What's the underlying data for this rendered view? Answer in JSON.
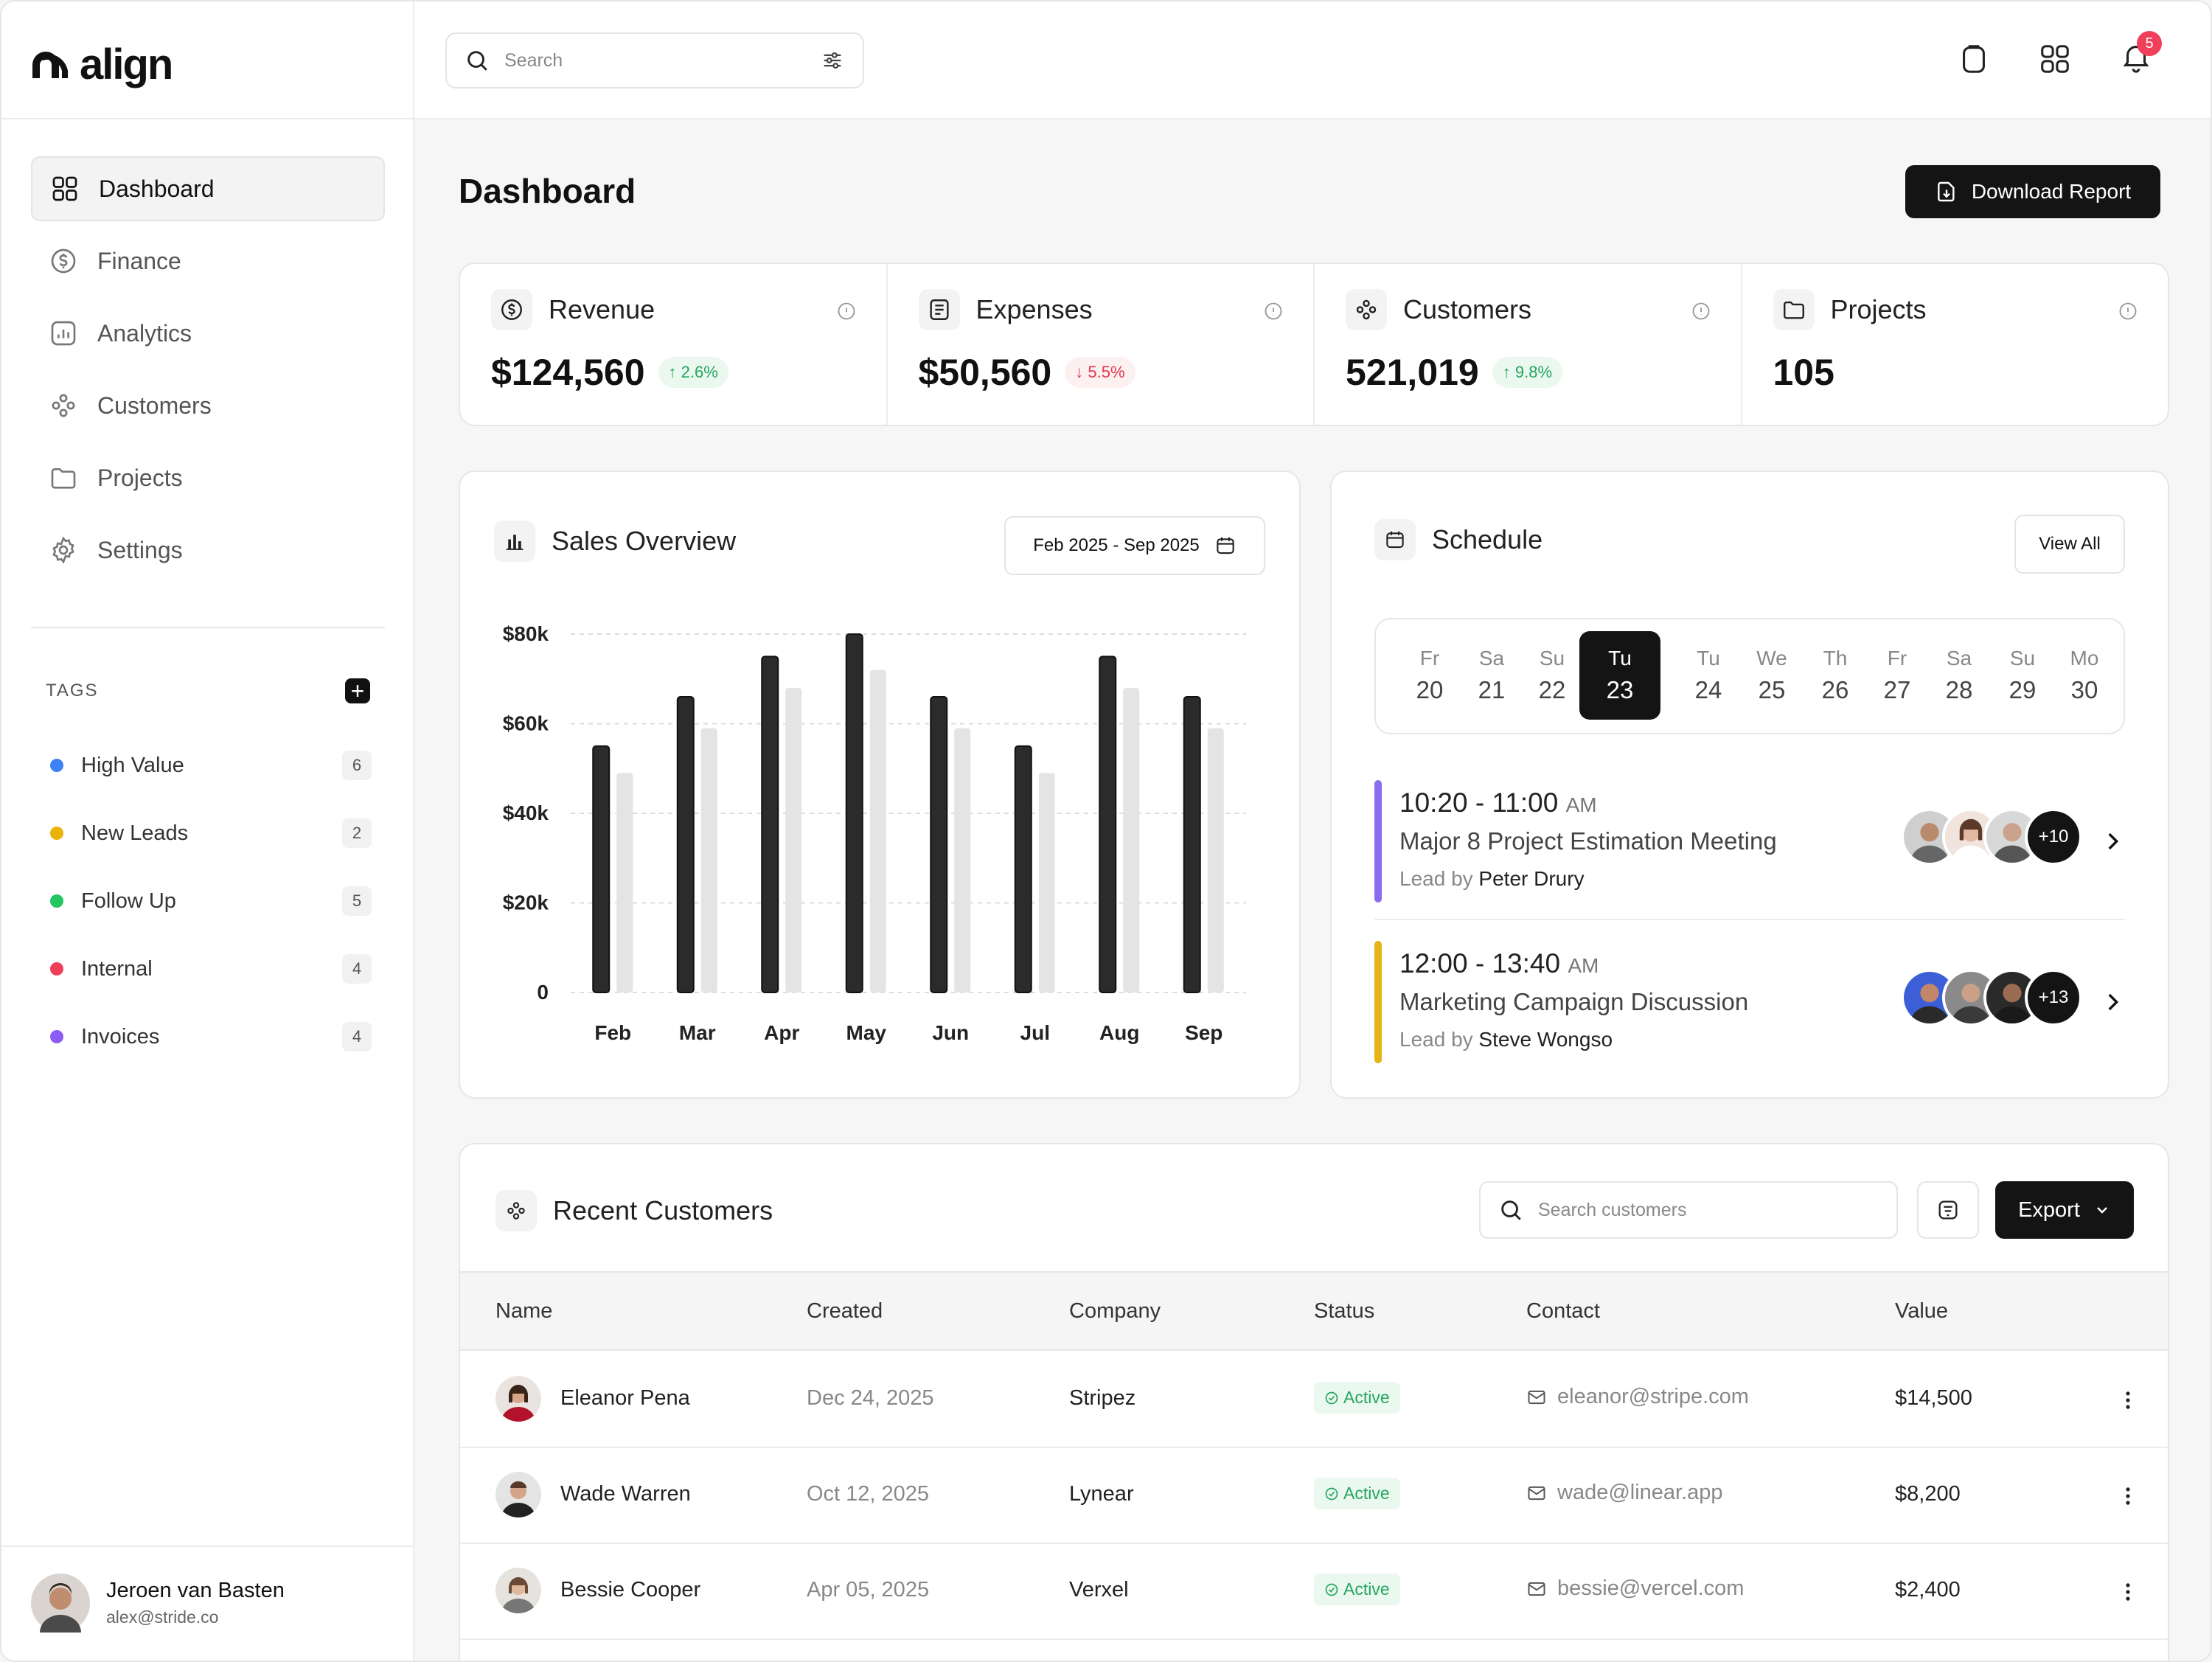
{
  "app": {
    "name": "align"
  },
  "sidebar": {
    "items": [
      {
        "label": "Dashboard",
        "icon": "grid-icon"
      },
      {
        "label": "Finance",
        "icon": "dollar-icon"
      },
      {
        "label": "Analytics",
        "icon": "analytics-icon"
      },
      {
        "label": "Customers",
        "icon": "customers-icon"
      },
      {
        "label": "Projects",
        "icon": "folder-icon"
      },
      {
        "label": "Settings",
        "icon": "gear-icon"
      }
    ],
    "tags_title": "TAGS",
    "tags": [
      {
        "label": "High Value",
        "count": "6",
        "color": "#3b82f6"
      },
      {
        "label": "New Leads",
        "count": "2",
        "color": "#eab308"
      },
      {
        "label": "Follow Up",
        "count": "5",
        "color": "#22c55e"
      },
      {
        "label": "Internal",
        "count": "4",
        "color": "#ef3f5a"
      },
      {
        "label": "Invoices",
        "count": "4",
        "color": "#8b5cf6"
      }
    ],
    "user": {
      "name": "Jeroen van Basten",
      "email": "alex@stride.co"
    }
  },
  "topbar": {
    "search_placeholder": "Search",
    "notifications": "5"
  },
  "header": {
    "title": "Dashboard",
    "download_label": "Download Report"
  },
  "stats": [
    {
      "label": "Revenue",
      "value": "$124,560",
      "change": "2.6%",
      "direction": "up"
    },
    {
      "label": "Expenses",
      "value": "$50,560",
      "change": "5.5%",
      "direction": "down"
    },
    {
      "label": "Customers",
      "value": "521,019",
      "change": "9.8%",
      "direction": "up"
    },
    {
      "label": "Projects",
      "value": "105",
      "change": "",
      "direction": ""
    }
  ],
  "sales": {
    "title": "Sales Overview",
    "range": "Feb 2025 - Sep 2025"
  },
  "chart_data": {
    "type": "bar",
    "categories": [
      "Feb",
      "Mar",
      "Apr",
      "May",
      "Jun",
      "Jul",
      "Aug",
      "Sep"
    ],
    "series": [
      {
        "values": [
          55000,
          66000,
          75000,
          80000,
          66000,
          55000,
          75000,
          66000
        ],
        "color": "#2b2b2b"
      },
      {
        "values": [
          49000,
          59000,
          68000,
          72000,
          59000,
          49000,
          68000,
          59000
        ],
        "color": "#e4e4e4"
      }
    ],
    "ytick_labels": [
      "0",
      "$20k",
      "$40k",
      "$60k",
      "$80k"
    ],
    "ylim": [
      0,
      80000
    ],
    "grid": true
  },
  "schedule": {
    "title": "Schedule",
    "view_all": "View All",
    "days": [
      {
        "name": "Fr",
        "date": "20"
      },
      {
        "name": "Sa",
        "date": "21"
      },
      {
        "name": "Su",
        "date": "22"
      },
      {
        "name": "Tu",
        "date": "23",
        "active": true
      },
      {
        "name": "Tu",
        "date": "24"
      },
      {
        "name": "We",
        "date": "25"
      },
      {
        "name": "Th",
        "date": "26"
      },
      {
        "name": "Fr",
        "date": "27"
      },
      {
        "name": "Sa",
        "date": "28"
      },
      {
        "name": "Su",
        "date": "29"
      },
      {
        "name": "Mo",
        "date": "30"
      }
    ],
    "events": [
      {
        "time": "10:20 - 11:00",
        "ampm": "AM",
        "title": "Major 8 Project Estimation Meeting",
        "lead_prefix": "Lead by",
        "lead": "Peter Drury",
        "more": "+10",
        "color": "#8b6cf0"
      },
      {
        "time": "12:00 - 13:40",
        "ampm": "AM",
        "title": "Marketing Campaign Discussion",
        "lead_prefix": "Lead by",
        "lead": "Steve Wongso",
        "more": "+13",
        "color": "#e7b416"
      }
    ]
  },
  "customers": {
    "title": "Recent Customers",
    "search_placeholder": "Search customers",
    "export_label": "Export",
    "columns": [
      "Name",
      "Created",
      "Company",
      "Status",
      "Contact",
      "Value"
    ],
    "rows": [
      {
        "name": "Eleanor Pena",
        "created": "Dec 24, 2025",
        "company": "Stripez",
        "status": "Active",
        "contact": "eleanor@stripe.com",
        "value": "$14,500"
      },
      {
        "name": "Wade Warren",
        "created": "Oct 12, 2025",
        "company": "Lynear",
        "status": "Active",
        "contact": "wade@linear.app",
        "value": "$8,200"
      },
      {
        "name": "Bessie Cooper",
        "created": "Apr 05, 2025",
        "company": "Verxel",
        "status": "Active",
        "contact": "bessie@vercel.com",
        "value": "$2,400"
      }
    ]
  }
}
